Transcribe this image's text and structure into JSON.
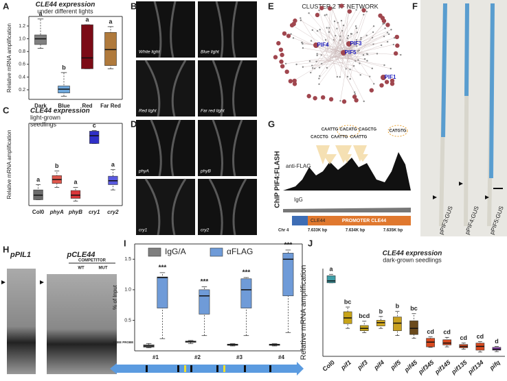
{
  "panel_labels": [
    "A",
    "B",
    "C",
    "D",
    "E",
    "F",
    "G",
    "H",
    "I",
    "J"
  ],
  "chart_data": [
    {
      "type": "box",
      "title": "CLE44 expression",
      "subtitle": [
        "under different lights"
      ],
      "y_label": "Relative mRNA amplification",
      "categories": [
        "Dark",
        "Blue",
        "Red",
        "Far Red"
      ],
      "series": [
        {
          "colors": [
            "#808080",
            "#6fa8dc",
            "#7b0b16",
            "#b07a3c"
          ],
          "min": [
            0.85,
            0.1,
            0.53,
            0.53
          ],
          "q1": [
            0.91,
            0.15,
            0.53,
            0.58
          ],
          "median": [
            1.0,
            0.21,
            0.7,
            0.83
          ],
          "q3": [
            1.06,
            0.26,
            1.22,
            1.1
          ],
          "max": [
            1.31,
            0.47,
            1.22,
            1.19
          ]
        }
      ],
      "annotations": [
        "a",
        "b",
        "a",
        "a"
      ],
      "ylim": [
        0.05,
        1.35
      ],
      "yticks": [
        0.2,
        0.4,
        0.6,
        0.8,
        {
          "value": 1,
          "label": "1.0"
        },
        1.2
      ]
    },
    {
      "type": "box",
      "title": "CLE44 expression",
      "subtitle": [
        "light-grown",
        "seedlings"
      ],
      "y_label": "Relative mRNA amplification",
      "categories": [
        "Col0",
        "phyA",
        "phyB",
        "cry1",
        "cry2"
      ],
      "series": [
        {
          "colors": [
            "#6b6b6b",
            "#e0584e",
            "#d9363a",
            "#3030c8",
            "#5a5ae0"
          ],
          "min": [
            0.75,
            2.33,
            0.58,
            7.92,
            2.0
          ],
          "q1": [
            0.75,
            2.83,
            0.92,
            7.92,
            2.67
          ],
          "median": [
            1.33,
            3.33,
            1.33,
            8.92,
            3.17
          ],
          "q3": [
            2.0,
            3.83,
            1.92,
            9.5,
            3.75
          ],
          "max": [
            2.67,
            4.42,
            2.33,
            9.58,
            4.58
          ]
        }
      ],
      "annotations": [
        "a",
        "b",
        "a",
        "c",
        "a"
      ],
      "ylim": [
        0,
        10.5
      ]
    },
    {
      "type": "box",
      "y_label": "% of Input",
      "categories": [
        "#1",
        "#2",
        "#3",
        "#4"
      ],
      "series": [
        {
          "name": "IgG/A",
          "color": "#7f7f7f",
          "min": [
            0.05,
            0.12,
            0.08,
            0.08
          ],
          "q1": [
            0.06,
            0.14,
            0.09,
            0.09
          ],
          "median": [
            0.08,
            0.15,
            0.1,
            0.1
          ],
          "q3": [
            0.1,
            0.16,
            0.11,
            0.11
          ],
          "max": [
            0.12,
            0.17,
            0.12,
            0.12
          ]
        },
        {
          "name": "αFLAG",
          "color": "#6f9bd8",
          "min": [
            0.2,
            0.25,
            0.25,
            0.3
          ],
          "q1": [
            0.7,
            0.6,
            0.7,
            0.9
          ],
          "median": [
            1.2,
            0.9,
            1.0,
            1.5
          ],
          "q3": [
            1.21,
            1.0,
            1.18,
            1.6
          ],
          "max": [
            1.28,
            1.05,
            1.2,
            1.65
          ]
        }
      ],
      "annotations": [
        "***",
        "***",
        "***",
        "***"
      ],
      "ylim": [
        0,
        1.75
      ],
      "yticks": [
        0.5,
        {
          "value": 1,
          "label": "1.0"
        },
        1.5
      ]
    },
    {
      "type": "box",
      "title": "CLE44 expression",
      "subtitle": [
        "dark-grown seedlings"
      ],
      "y_label": "Relative mRNA amplification",
      "categories": [
        "Col0",
        "pif1",
        "pif3",
        "pif4",
        "pif5",
        "pif45",
        "pif345",
        "pif145",
        "pif135",
        "pif134",
        "pifq"
      ],
      "series": [
        {
          "colors": [
            "#3f9fa8",
            "#c8a418",
            "#c8a418",
            "#d4aa20",
            "#c8a020",
            "#6b4a1c",
            "#d84a20",
            "#d84a20",
            "#d84a20",
            "#d84a20",
            "#8a3fb0"
          ],
          "min": [
            1.55,
            0.59,
            0.5,
            0.59,
            0.44,
            0.38,
            0.19,
            0.2,
            0.15,
            0.09,
            0.1
          ],
          "q1": [
            1.55,
            0.69,
            0.54,
            0.64,
            0.54,
            0.46,
            0.2,
            0.24,
            0.18,
            0.13,
            0.13
          ],
          "median": [
            1.59,
            0.81,
            0.59,
            0.71,
            0.7,
            0.59,
            0.3,
            0.28,
            0.21,
            0.21,
            0.15
          ],
          "q3": [
            1.7,
            0.94,
            0.65,
            0.76,
            0.83,
            0.75,
            0.38,
            0.35,
            0.25,
            0.28,
            0.19
          ],
          "max": [
            1.73,
            1.04,
            0.74,
            0.84,
            0.95,
            0.9,
            0.41,
            0.4,
            0.28,
            0.31,
            0.21
          ]
        }
      ],
      "annotations": [
        "a",
        "bc",
        "bcd",
        "b",
        "b",
        "bc",
        "cd",
        "cd",
        "cd",
        "cd",
        "d"
      ],
      "ylim": [
        0,
        1.85
      ]
    }
  ],
  "B": {
    "labels": [
      "White light",
      "Blue light",
      "Red light",
      "Far red light"
    ]
  },
  "D": {
    "labels": [
      "phyA",
      "phyB",
      "cry1",
      "cry2"
    ]
  },
  "E": {
    "title": "CLUSTER 2 TF NETWORK",
    "nodes": [
      "PIF4",
      "PIF3",
      "PIF5",
      "PIF1"
    ]
  },
  "F": {
    "labels": [
      "pPIF3:GUS",
      "pPIF4:GUS",
      "pPIF5:GUS"
    ]
  },
  "G": {
    "y_label": "ChIP PIF4:FLASH",
    "tracks": [
      "anti-FLAG",
      "IgG"
    ],
    "motifs": [
      "CAATTG",
      "CACATG",
      "CAGCTG",
      "CACCTG",
      "CAATTG",
      "CAATTG",
      "CATGTG"
    ],
    "chromosome": "Chr 4",
    "positions": [
      "7.633K bp",
      "7.634K bp",
      "7.635K bp"
    ],
    "genes": [
      "CLE44",
      "PROMOTER CLE44"
    ]
  },
  "H": {
    "probes": [
      "pPIL1",
      "pCLE44"
    ],
    "competitor": "COMPETITOR",
    "lanes": [
      "WT",
      "MUT"
    ],
    "free_probe": "FREE PROBE"
  }
}
